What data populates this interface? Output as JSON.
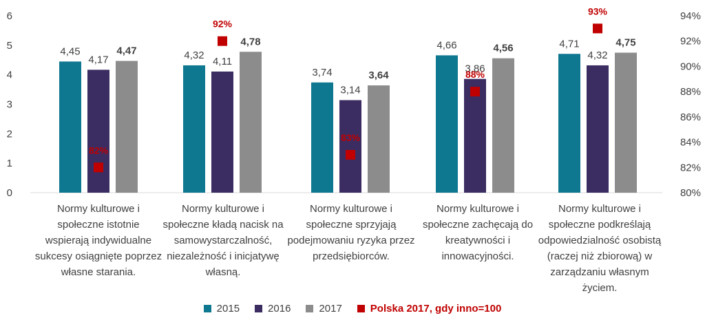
{
  "chart_data": {
    "type": "bar",
    "categories": [
      "Normy kulturowe i społeczne istotnie wspierają indywidualne sukcesy osiągnięte poprzez własne starania.",
      "Normy kulturowe i społeczne kładą nacisk na samowystarczalność, niezależność i inicjatywę własną.",
      "Normy kulturowe i społeczne sprzyjają podejmowaniu ryzyka przez przedsiębiorców.",
      "Normy kulturowe i społeczne zachęcają do kreatywności i innowacyjności.",
      "Normy kulturowe i społeczne podkreślają odpowiedzialność osobistą (raczej niż zbiorową) w zarządzaniu własnym życiem."
    ],
    "series": [
      {
        "name": "2015",
        "color": "#0f7891",
        "values": [
          4.45,
          4.32,
          3.74,
          4.66,
          4.71
        ],
        "labels": [
          "4,45",
          "4,32",
          "3,74",
          "4,66",
          "4,71"
        ],
        "bold": false
      },
      {
        "name": "2016",
        "color": "#3b2d62",
        "values": [
          4.17,
          4.11,
          3.14,
          3.86,
          4.32
        ],
        "labels": [
          "4,17",
          "4,11",
          "3,14",
          "3,86",
          "4,32"
        ],
        "bold": false
      },
      {
        "name": "2017",
        "color": "#8c8c8c",
        "values": [
          4.47,
          4.78,
          3.64,
          4.56,
          4.75
        ],
        "labels": [
          "4,47",
          "4,78",
          "3,64",
          "4,56",
          "4,75"
        ],
        "bold": true
      }
    ],
    "secondary_series": {
      "name": "Polska 2017, gdy inno=100",
      "color": "#c00000",
      "marker": "square",
      "axis": "right",
      "values": [
        82,
        92,
        83,
        88,
        93
      ],
      "labels": [
        "82%",
        "92%",
        "83%",
        "88%",
        "93%"
      ]
    },
    "y_left": {
      "min": 0,
      "max": 6,
      "ticks": [
        "0",
        "1",
        "2",
        "3",
        "4",
        "5",
        "6"
      ]
    },
    "y_right": {
      "min": 80,
      "max": 94,
      "ticks": [
        "80%",
        "82%",
        "84%",
        "86%",
        "88%",
        "90%",
        "92%",
        "94%"
      ]
    },
    "grid": false,
    "legend_position": "bottom"
  }
}
